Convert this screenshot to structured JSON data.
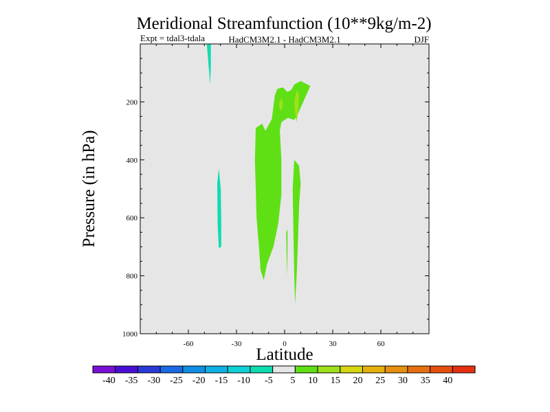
{
  "chart_data": {
    "type": "contour",
    "title": "Meridional Streamfunction (10**9kg/m-2)",
    "subtitle_left": "Expt = tdal3-tdala",
    "subtitle_center": "HadCM3M2.1 - HadCM3M2.1",
    "subtitle_right": "DJF",
    "xlabel": "Latitude",
    "ylabel": "Pressure (in hPa)",
    "xlim": [
      -90,
      90
    ],
    "ylim": [
      1000,
      0
    ],
    "xticks": [
      -60,
      -30,
      0,
      30,
      60
    ],
    "xtick_labels": [
      "-60",
      "-30",
      "0",
      "30",
      "60"
    ],
    "yticks": [
      200,
      400,
      600,
      800,
      1000
    ],
    "ytick_labels": [
      "200",
      "400",
      "600",
      "800",
      "1000"
    ],
    "background_color": "#e6e6e6",
    "colorbar": {
      "labels": [
        "-40",
        "-35",
        "-30",
        "-25",
        "-20",
        "-15",
        "-10",
        "-5",
        "5",
        "10",
        "15",
        "20",
        "25",
        "30",
        "35",
        "40"
      ],
      "colors": [
        "#7a0fd6",
        "#4a0fd6",
        "#2a3ad6",
        "#1a6ae6",
        "#0f8ee6",
        "#0fb0e6",
        "#0fd0d6",
        "#0fdcb0",
        "#e6e6e6",
        "#5ee015",
        "#9ee01a",
        "#d6d60f",
        "#e6b00f",
        "#e6900f",
        "#e6700f",
        "#e6500f",
        "#e6300f"
      ]
    },
    "regions": [
      {
        "name": "neg-upper-midlat",
        "level": "-10 to -5",
        "color": "#0fdcb0",
        "points": [
          [
            -48.5,
            0
          ],
          [
            -46,
            0
          ],
          [
            -46,
            80
          ],
          [
            -46.5,
            140
          ],
          [
            -47,
            100
          ],
          [
            -48.5,
            0
          ]
        ]
      },
      {
        "name": "neg-midtrop",
        "level": "-10 to -5",
        "color": "#0fdcb0",
        "points": [
          [
            -42,
            480
          ],
          [
            -41,
            430
          ],
          [
            -39.8,
            500
          ],
          [
            -39.5,
            600
          ],
          [
            -39.5,
            700
          ],
          [
            -41,
            705
          ],
          [
            -41.8,
            620
          ],
          [
            -42,
            480
          ]
        ]
      },
      {
        "name": "pos-main-column",
        "level": "5 to 10",
        "color": "#5ee015",
        "points": [
          [
            -18,
            290
          ],
          [
            -14,
            275
          ],
          [
            -12,
            300
          ],
          [
            -8,
            260
          ],
          [
            -6,
            175
          ],
          [
            -4.5,
            155
          ],
          [
            -1,
            150
          ],
          [
            1.5,
            165
          ],
          [
            4,
            160
          ],
          [
            6,
            140
          ],
          [
            10,
            128
          ],
          [
            16,
            145
          ],
          [
            12,
            195
          ],
          [
            8,
            245
          ],
          [
            6,
            262
          ],
          [
            2,
            255
          ],
          [
            -2,
            270
          ],
          [
            -3,
            300
          ],
          [
            -2,
            400
          ],
          [
            -2,
            520
          ],
          [
            -4,
            620
          ],
          [
            -7,
            700
          ],
          [
            -11,
            760
          ],
          [
            -13,
            815
          ],
          [
            -15,
            780
          ],
          [
            -16,
            700
          ],
          [
            -17.5,
            600
          ],
          [
            -18,
            500
          ],
          [
            -18.5,
            400
          ],
          [
            -18,
            290
          ]
        ]
      },
      {
        "name": "pos-lower-column",
        "level": "5 to 10",
        "color": "#5ee015",
        "points": [
          [
            6,
            400
          ],
          [
            9,
            420
          ],
          [
            10,
            480
          ],
          [
            9,
            560
          ],
          [
            8.5,
            650
          ],
          [
            7.5,
            800
          ],
          [
            6.5,
            900
          ],
          [
            6,
            800
          ],
          [
            5.5,
            650
          ],
          [
            5,
            500
          ],
          [
            6,
            400
          ]
        ]
      },
      {
        "name": "pos-small-sliver",
        "level": "5 to 10",
        "color": "#5ee015",
        "points": [
          [
            1,
            650
          ],
          [
            1.8,
            640
          ],
          [
            1.8,
            720
          ],
          [
            1.5,
            800
          ],
          [
            1.2,
            720
          ],
          [
            1,
            650
          ]
        ]
      },
      {
        "name": "pos-upper-core-left",
        "level": "10 to 15",
        "color": "#9ee01a",
        "points": [
          [
            -3.5,
            205
          ],
          [
            -2,
            185
          ],
          [
            -1,
            205
          ],
          [
            -2,
            230
          ],
          [
            -3,
            225
          ],
          [
            -3.5,
            205
          ]
        ]
      },
      {
        "name": "pos-upper-core-right",
        "level": "10 to 15",
        "color": "#9ee01a",
        "points": [
          [
            6,
            200
          ],
          [
            7.5,
            160
          ],
          [
            9,
            175
          ],
          [
            8.5,
            230
          ],
          [
            7.5,
            270
          ],
          [
            6.5,
            240
          ],
          [
            6,
            200
          ]
        ]
      }
    ]
  }
}
